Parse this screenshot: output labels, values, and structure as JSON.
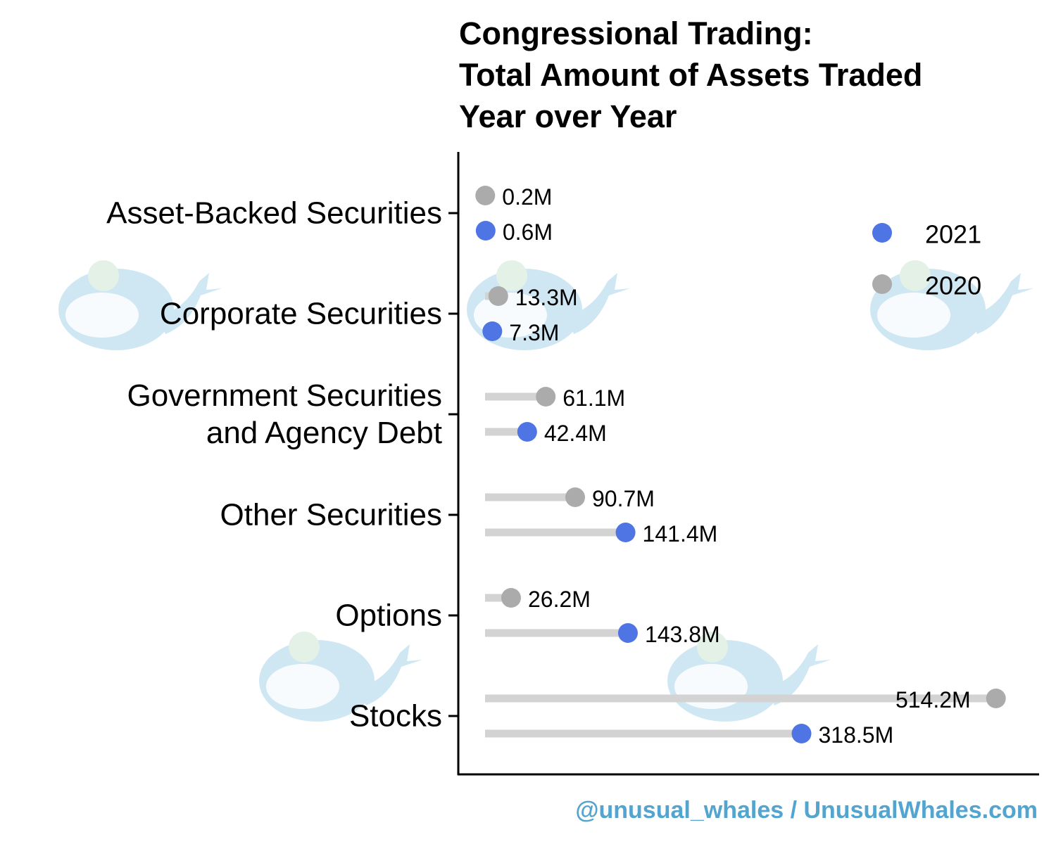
{
  "chart_data": {
    "type": "dumbbell",
    "title": [
      "Congressional Trading:",
      "Total Amount of Assets Traded",
      "Year over Year"
    ],
    "categories": [
      [
        "Asset-Backed Securities"
      ],
      [
        "Corporate Securities"
      ],
      [
        "Government Securities",
        "and Agency Debt"
      ],
      [
        "Other Securities"
      ],
      [
        "Options"
      ],
      [
        "Stocks"
      ]
    ],
    "series": [
      {
        "name": "2020",
        "color": "#ababab",
        "values": [
          0.2,
          13.3,
          61.1,
          90.7,
          26.2,
          514.2
        ],
        "labels": [
          "0.2M",
          "13.3M",
          "61.1M",
          "90.7M",
          "26.2M",
          "514.2M"
        ]
      },
      {
        "name": "2021",
        "color": "#4f74e3",
        "values": [
          0.6,
          7.3,
          42.4,
          141.4,
          143.8,
          318.5
        ],
        "labels": [
          "0.6M",
          "7.3M",
          "42.4M",
          "141.4M",
          "143.8M",
          "318.5M"
        ]
      }
    ],
    "xlim": [
      0,
      530
    ],
    "xlabel": "",
    "ylabel": "",
    "segment_color": "#d3d3d3",
    "legend": {
      "position": "top-right",
      "entries": [
        "2021",
        "2020"
      ]
    }
  },
  "credit": "@unusual_whales / UnusualWhales.com"
}
